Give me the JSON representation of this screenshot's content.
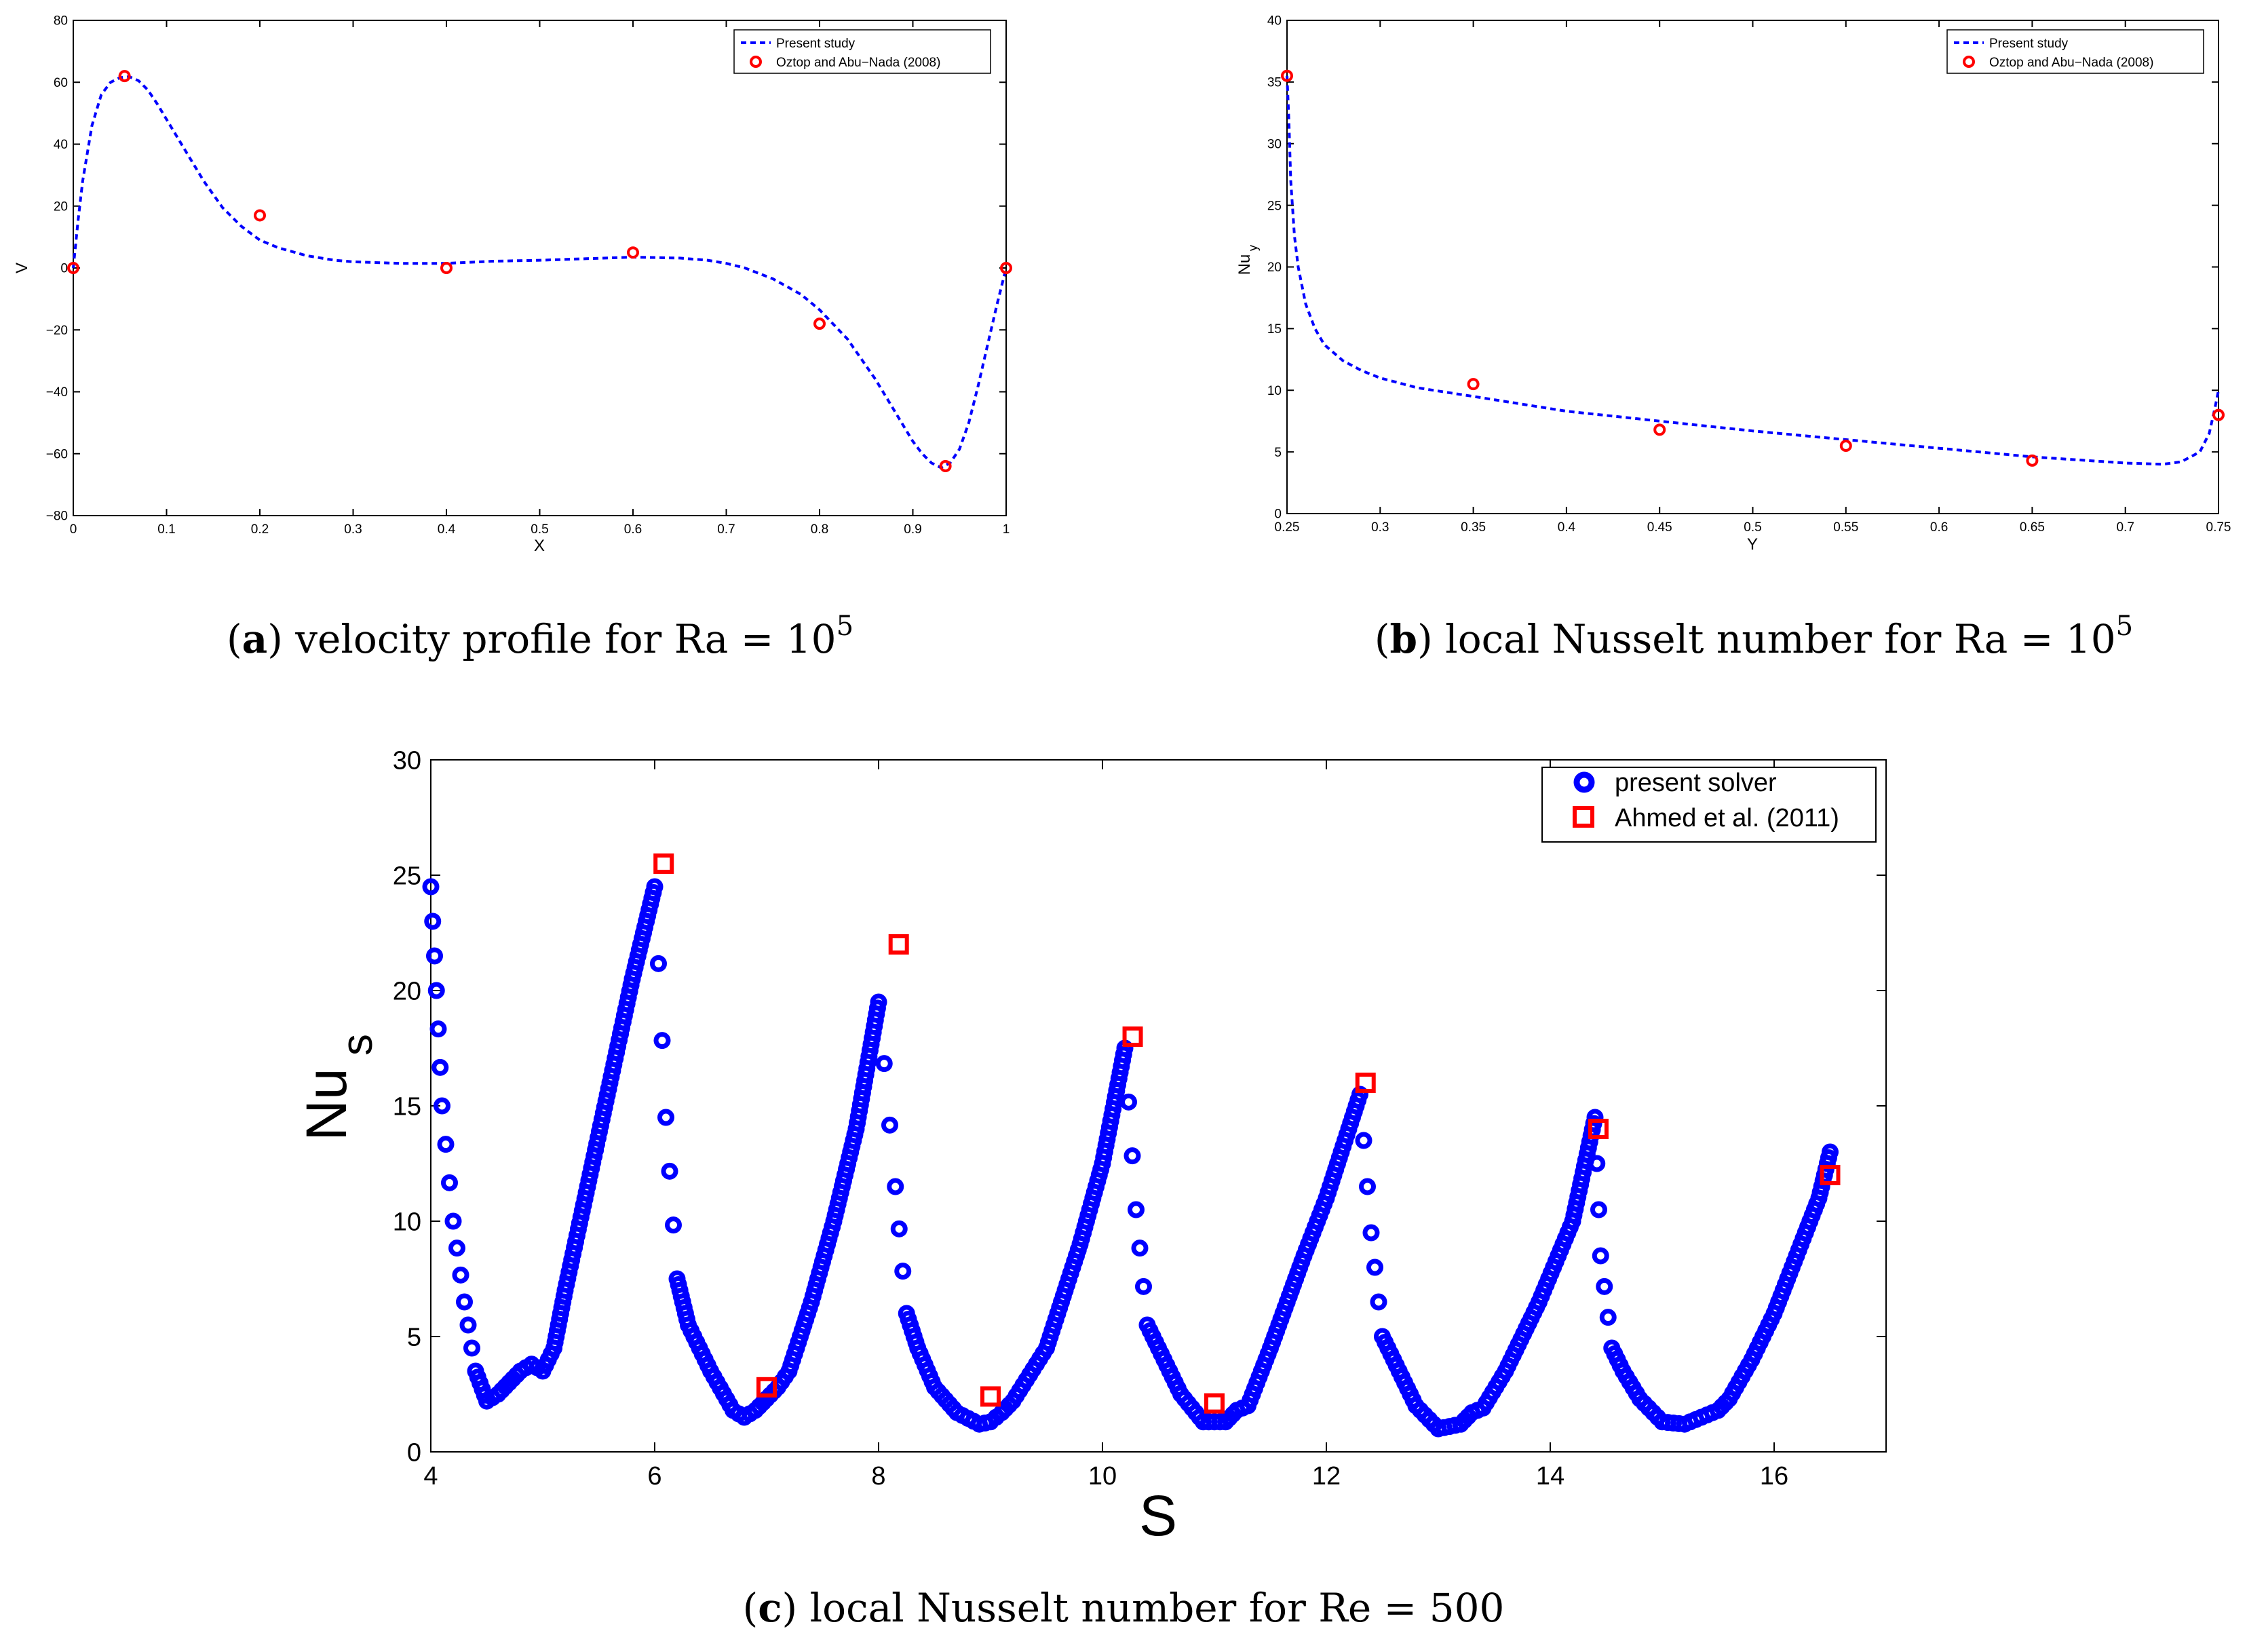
{
  "panels": [
    {
      "id": "a",
      "caption": {
        "open": "(",
        "letter": "a",
        "text": ") velocity profile for Ra = 10",
        "exp": "5"
      },
      "chart_data": {
        "type": "line",
        "title": "",
        "xlabel": "X",
        "ylabel": "V",
        "ylabel_sub": "",
        "xlim": [
          0,
          1
        ],
        "ylim": [
          -80,
          80
        ],
        "xticks": [
          0,
          0.1,
          0.2,
          0.3,
          0.4,
          0.5,
          0.6,
          0.7,
          0.8,
          0.9,
          1
        ],
        "yticks": [
          -80,
          -60,
          -40,
          -20,
          0,
          20,
          40,
          60,
          80
        ],
        "xtick_labels": [
          "0",
          "0.1",
          "0.2",
          "0.3",
          "0.4",
          "0.5",
          "0.6",
          "0.7",
          "0.8",
          "0.9",
          "1"
        ],
        "ytick_labels": [
          "−80",
          "−60",
          "−40",
          "−20",
          "0",
          "20",
          "40",
          "60",
          "80"
        ],
        "legend_position": "top-right",
        "series": [
          {
            "name": "Present study",
            "style": "dashed-line",
            "color": "#0000ff",
            "x": [
              0,
              0.005,
              0.01,
              0.02,
              0.03,
              0.04,
              0.05,
              0.06,
              0.07,
              0.08,
              0.09,
              0.1,
              0.12,
              0.14,
              0.16,
              0.18,
              0.2,
              0.22,
              0.25,
              0.28,
              0.3,
              0.35,
              0.4,
              0.45,
              0.5,
              0.55,
              0.6,
              0.65,
              0.68,
              0.7,
              0.72,
              0.75,
              0.78,
              0.8,
              0.83,
              0.86,
              0.88,
              0.9,
              0.91,
              0.92,
              0.93,
              0.94,
              0.95,
              0.96,
              0.97,
              0.98,
              0.99,
              1.0
            ],
            "y": [
              0,
              15,
              28,
              46,
              56,
              60,
              61.5,
              61.8,
              60.5,
              57.5,
              53,
              48,
              38,
              28,
              19.5,
              13.5,
              9,
              6.5,
              4,
              2.5,
              2,
              1.5,
              1.5,
              2.2,
              2.5,
              3,
              3.5,
              3.2,
              2.5,
              1.5,
              0,
              -3.5,
              -8.5,
              -13.5,
              -23,
              -36,
              -46,
              -56,
              -60,
              -63,
              -64.5,
              -63,
              -58.5,
              -50,
              -38,
              -25,
              -12,
              0
            ]
          },
          {
            "name": "Oztop and Abu−Nada (2008)",
            "style": "circle-markers",
            "color": "#ff0000",
            "x": [
              0,
              0.055,
              0.2,
              0.4,
              0.6,
              0.8,
              0.935,
              1.0
            ],
            "y": [
              0,
              62,
              17,
              0,
              5,
              -18,
              -64,
              0
            ]
          }
        ]
      }
    },
    {
      "id": "b",
      "caption": {
        "open": "(",
        "letter": "b",
        "text": ") local Nusselt number for Ra = 10",
        "exp": "5"
      },
      "chart_data": {
        "type": "line",
        "title": "",
        "xlabel": "Y",
        "ylabel": "Nu",
        "ylabel_sub": "y",
        "xlim": [
          0.25,
          0.75
        ],
        "ylim": [
          0,
          40
        ],
        "xticks": [
          0.25,
          0.3,
          0.35,
          0.4,
          0.45,
          0.5,
          0.55,
          0.6,
          0.65,
          0.7,
          0.75
        ],
        "yticks": [
          0,
          5,
          10,
          15,
          20,
          25,
          30,
          35,
          40
        ],
        "xtick_labels": [
          "0.25",
          "0.3",
          "0.35",
          "0.4",
          "0.45",
          "0.5",
          "0.55",
          "0.6",
          "0.65",
          "0.7",
          "0.75"
        ],
        "ytick_labels": [
          "0",
          "5",
          "10",
          "15",
          "20",
          "25",
          "30",
          "35",
          "40"
        ],
        "legend_position": "top-right",
        "series": [
          {
            "name": "Present study",
            "style": "dashed-line",
            "color": "#0000ff",
            "x": [
              0.25,
              0.251,
              0.252,
              0.254,
              0.256,
              0.258,
              0.26,
              0.265,
              0.27,
              0.28,
              0.29,
              0.3,
              0.32,
              0.35,
              0.4,
              0.45,
              0.5,
              0.55,
              0.6,
              0.65,
              0.7,
              0.72,
              0.73,
              0.74,
              0.745,
              0.748,
              0.75
            ],
            "y": [
              35.5,
              32,
              27,
              22.5,
              20,
              18.5,
              17,
              15,
              13.7,
              12.4,
              11.6,
              11,
              10.2,
              9.5,
              8.3,
              7.5,
              6.7,
              6,
              5.3,
              4.6,
              4.1,
              4,
              4.2,
              5,
              6.5,
              8.5,
              10
            ]
          },
          {
            "name": "Oztop and Abu−Nada (2008)",
            "style": "circle-markers",
            "color": "#ff0000",
            "x": [
              0.25,
              0.35,
              0.45,
              0.55,
              0.65,
              0.75
            ],
            "y": [
              35.5,
              10.5,
              6.8,
              5.5,
              4.3,
              8
            ]
          }
        ]
      }
    },
    {
      "id": "c",
      "caption": {
        "open": "(",
        "letter": "c",
        "text": ") local Nusselt number for Re = 500",
        "exp": ""
      },
      "chart_data": {
        "type": "scatter",
        "title": "",
        "xlabel": "S",
        "ylabel": "Nu",
        "ylabel_sub": "s",
        "xlim": [
          4,
          17
        ],
        "ylim": [
          0,
          30
        ],
        "xticks": [
          4,
          6,
          8,
          10,
          12,
          14,
          16
        ],
        "yticks": [
          0,
          5,
          10,
          15,
          20,
          25,
          30
        ],
        "xtick_labels": [
          "4",
          "6",
          "8",
          "10",
          "12",
          "14",
          "16"
        ],
        "ytick_labels": [
          "0",
          "5",
          "10",
          "15",
          "20",
          "25",
          "30"
        ],
        "legend_position": "top-right",
        "series": [
          {
            "name": "present solver",
            "style": "circle-markers-dense",
            "color": "#0000ff",
            "x": [
              4.0,
              4.05,
              4.1,
              4.2,
              4.3,
              4.4,
              4.5,
              4.6,
              4.7,
              4.8,
              4.9,
              5.0,
              5.1,
              5.2,
              5.4,
              5.6,
              5.8,
              6.0,
              6.1,
              6.2,
              6.3,
              6.5,
              6.7,
              6.8,
              6.9,
              7.0,
              7.1,
              7.2,
              7.4,
              7.6,
              7.8,
              8.0,
              8.15,
              8.25,
              8.35,
              8.5,
              8.7,
              8.9,
              9.0,
              9.1,
              9.2,
              9.5,
              9.8,
              10.0,
              10.2,
              10.3,
              10.4,
              10.5,
              10.7,
              10.9,
              11.1,
              11.2,
              11.3,
              11.5,
              11.8,
              12.0,
              12.3,
              12.4,
              12.5,
              12.6,
              12.8,
              13.0,
              13.2,
              13.3,
              13.4,
              13.6,
              13.9,
              14.2,
              14.4,
              14.45,
              14.55,
              14.65,
              14.8,
              15.0,
              15.2,
              15.4,
              15.5,
              15.6,
              15.8,
              16.0,
              16.2,
              16.4,
              16.5
            ],
            "y": [
              24.5,
              20,
              15,
              10,
              6.5,
              3.5,
              2.2,
              2.5,
              3.0,
              3.5,
              3.8,
              3.5,
              4.5,
              7,
              11.5,
              16,
              20.5,
              24.5,
              14.5,
              7.5,
              5.5,
              3.5,
              1.8,
              1.5,
              1.8,
              2.3,
              2.8,
              3.5,
              6.5,
              10,
              14,
              19.5,
              11.5,
              6,
              4.5,
              2.8,
              1.7,
              1.2,
              1.3,
              1.7,
              2.2,
              4.5,
              9,
              12.5,
              17.5,
              10.5,
              5.5,
              4.5,
              2.5,
              1.3,
              1.3,
              1.8,
              2.0,
              4.5,
              8.5,
              11,
              15.5,
              9.5,
              5,
              4,
              2,
              1.0,
              1.2,
              1.7,
              1.9,
              3.5,
              6.5,
              10,
              14.5,
              8.5,
              4.5,
              3.5,
              2.3,
              1.3,
              1.2,
              1.6,
              1.8,
              2.3,
              4.0,
              6.0,
              8.5,
              11,
              13
            ]
          },
          {
            "name": "Ahmed et al. (2011)",
            "style": "square-markers",
            "color": "#ff0000",
            "x": [
              6.08,
              7.0,
              8.18,
              9.0,
              10.27,
              11.0,
              12.35,
              14.43,
              16.5
            ],
            "y": [
              25.5,
              2.8,
              22,
              2.4,
              18,
              2.1,
              16,
              14,
              12
            ]
          }
        ]
      }
    }
  ]
}
